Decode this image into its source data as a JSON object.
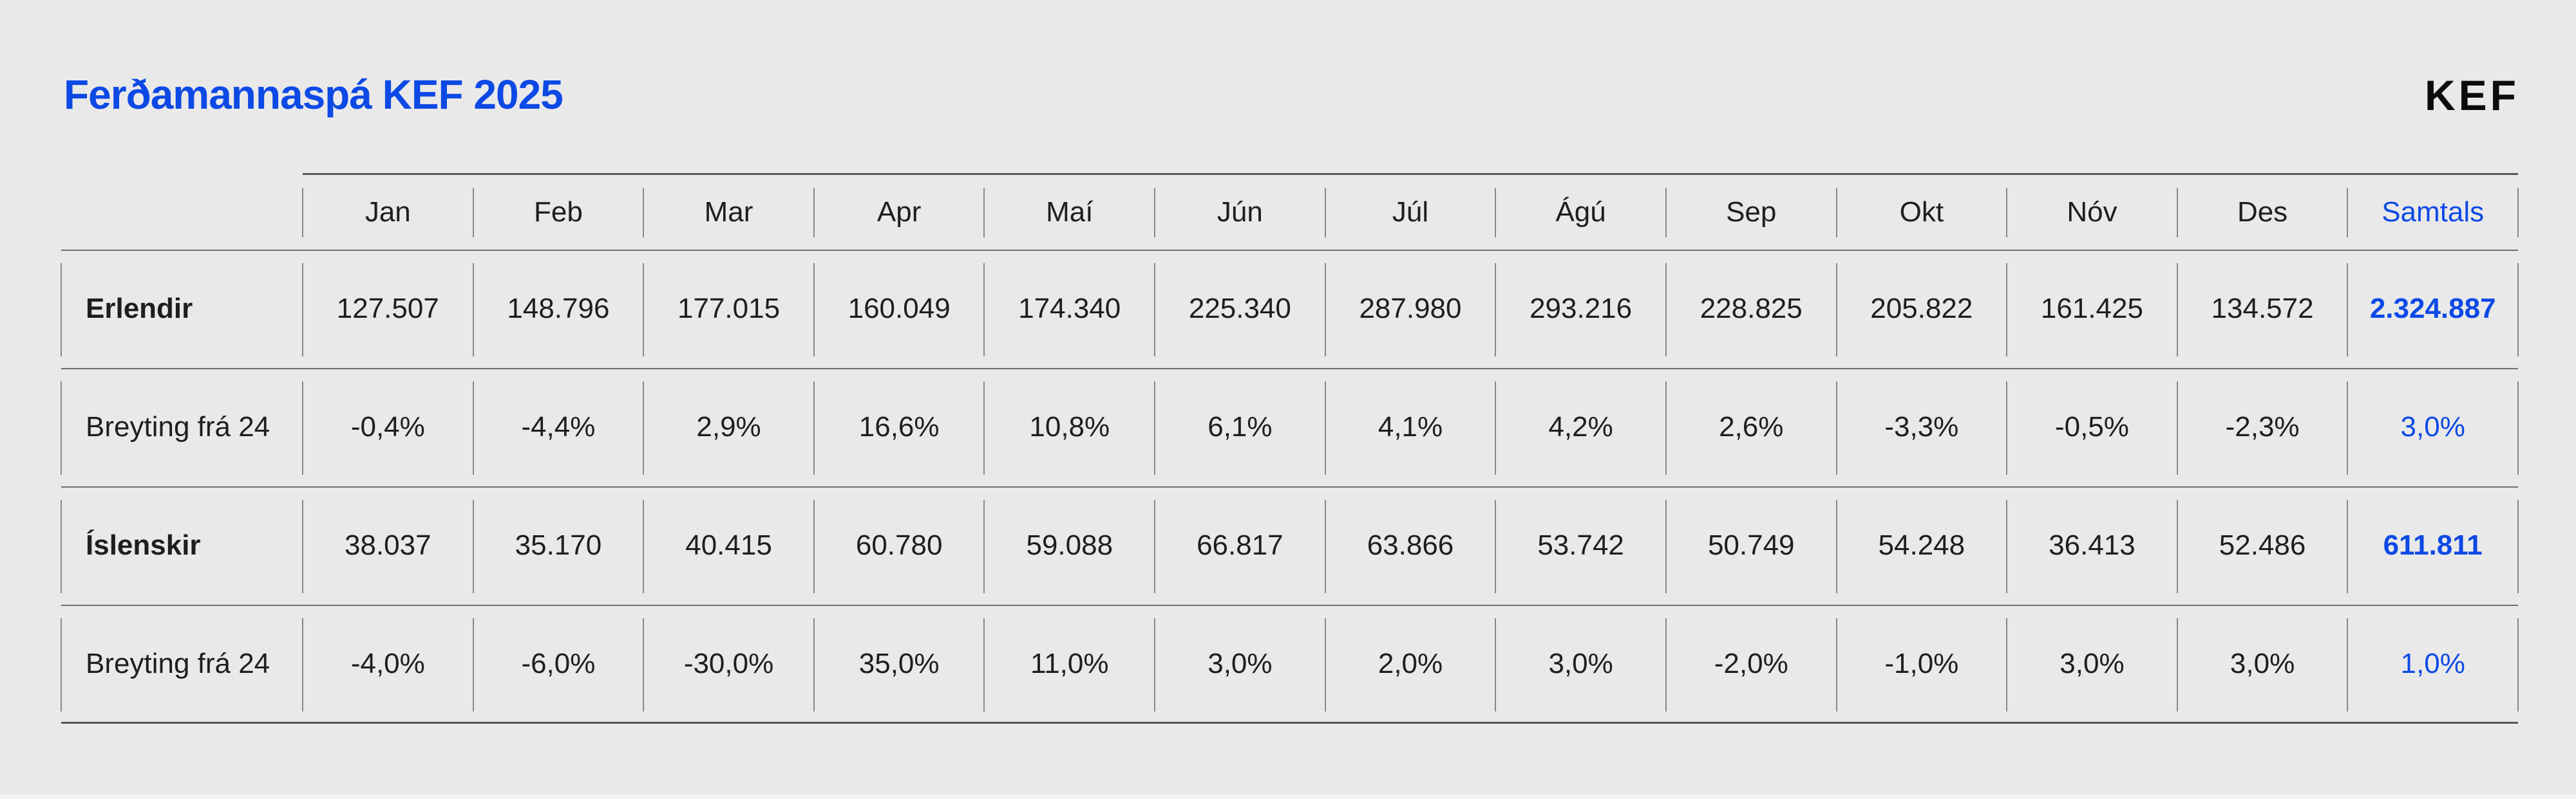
{
  "header": {
    "title": "Ferðamannaspá KEF 2025",
    "logo": "KEF"
  },
  "colors": {
    "accent_blue": "#0d49e5",
    "text_dark": "#1e1e1e",
    "logo_black": "#0c0c0c",
    "background": "#e9e9e9",
    "line_gray": "#6f6f6f"
  },
  "table": {
    "month_headers": [
      "Jan",
      "Feb",
      "Mar",
      "Apr",
      "Maí",
      "Jún",
      "Júl",
      "Ágú",
      "Sep",
      "Okt",
      "Nóv",
      "Des"
    ],
    "total_header": "Samtals",
    "rows": [
      {
        "label": "Erlendir",
        "values": [
          "127.507",
          "148.796",
          "177.015",
          "160.049",
          "174.340",
          "225.340",
          "287.980",
          "293.216",
          "228.825",
          "205.822",
          "161.425",
          "134.572"
        ],
        "total": "2.324.887"
      },
      {
        "label": "Breyting frá 24",
        "values": [
          "-0,4%",
          "-4,4%",
          "2,9%",
          "16,6%",
          "10,8%",
          "6,1%",
          "4,1%",
          "4,2%",
          "2,6%",
          "-3,3%",
          "-0,5%",
          "-2,3%"
        ],
        "total": "3,0%"
      },
      {
        "label": "Íslenskir",
        "values": [
          "38.037",
          "35.170",
          "40.415",
          "60.780",
          "59.088",
          "66.817",
          "63.866",
          "53.742",
          "50.749",
          "54.248",
          "36.413",
          "52.486"
        ],
        "total": "611.811"
      },
      {
        "label": "Breyting frá 24",
        "values": [
          "-4,0%",
          "-6,0%",
          "-30,0%",
          "35,0%",
          "11,0%",
          "3,0%",
          "2,0%",
          "3,0%",
          "-2,0%",
          "-1,0%",
          "3,0%",
          "3,0%"
        ],
        "total": "1,0%"
      }
    ]
  },
  "chart_data": {
    "type": "table",
    "title": "Ferðamannaspá KEF 2025",
    "columns": [
      "",
      "Jan",
      "Feb",
      "Mar",
      "Apr",
      "Maí",
      "Jún",
      "Júl",
      "Ágú",
      "Sep",
      "Okt",
      "Nóv",
      "Des",
      "Samtals"
    ],
    "rows": [
      [
        "Erlendir",
        "127.507",
        "148.796",
        "177.015",
        "160.049",
        "174.340",
        "225.340",
        "287.980",
        "293.216",
        "228.825",
        "205.822",
        "161.425",
        "134.572",
        "2.324.887"
      ],
      [
        "Breyting frá 24",
        "-0,4%",
        "-4,4%",
        "2,9%",
        "16,6%",
        "10,8%",
        "6,1%",
        "4,1%",
        "4,2%",
        "2,6%",
        "-3,3%",
        "-0,5%",
        "-2,3%",
        "3,0%"
      ],
      [
        "Íslenskir",
        "38.037",
        "35.170",
        "40.415",
        "60.780",
        "59.088",
        "66.817",
        "63.866",
        "53.742",
        "50.749",
        "54.248",
        "36.413",
        "52.486",
        "611.811"
      ],
      [
        "Breyting frá 24",
        "-4,0%",
        "-6,0%",
        "-30,0%",
        "35,0%",
        "11,0%",
        "3,0%",
        "2,0%",
        "3,0%",
        "-2,0%",
        "-1,0%",
        "3,0%",
        "3,0%",
        "1,0%"
      ]
    ]
  }
}
